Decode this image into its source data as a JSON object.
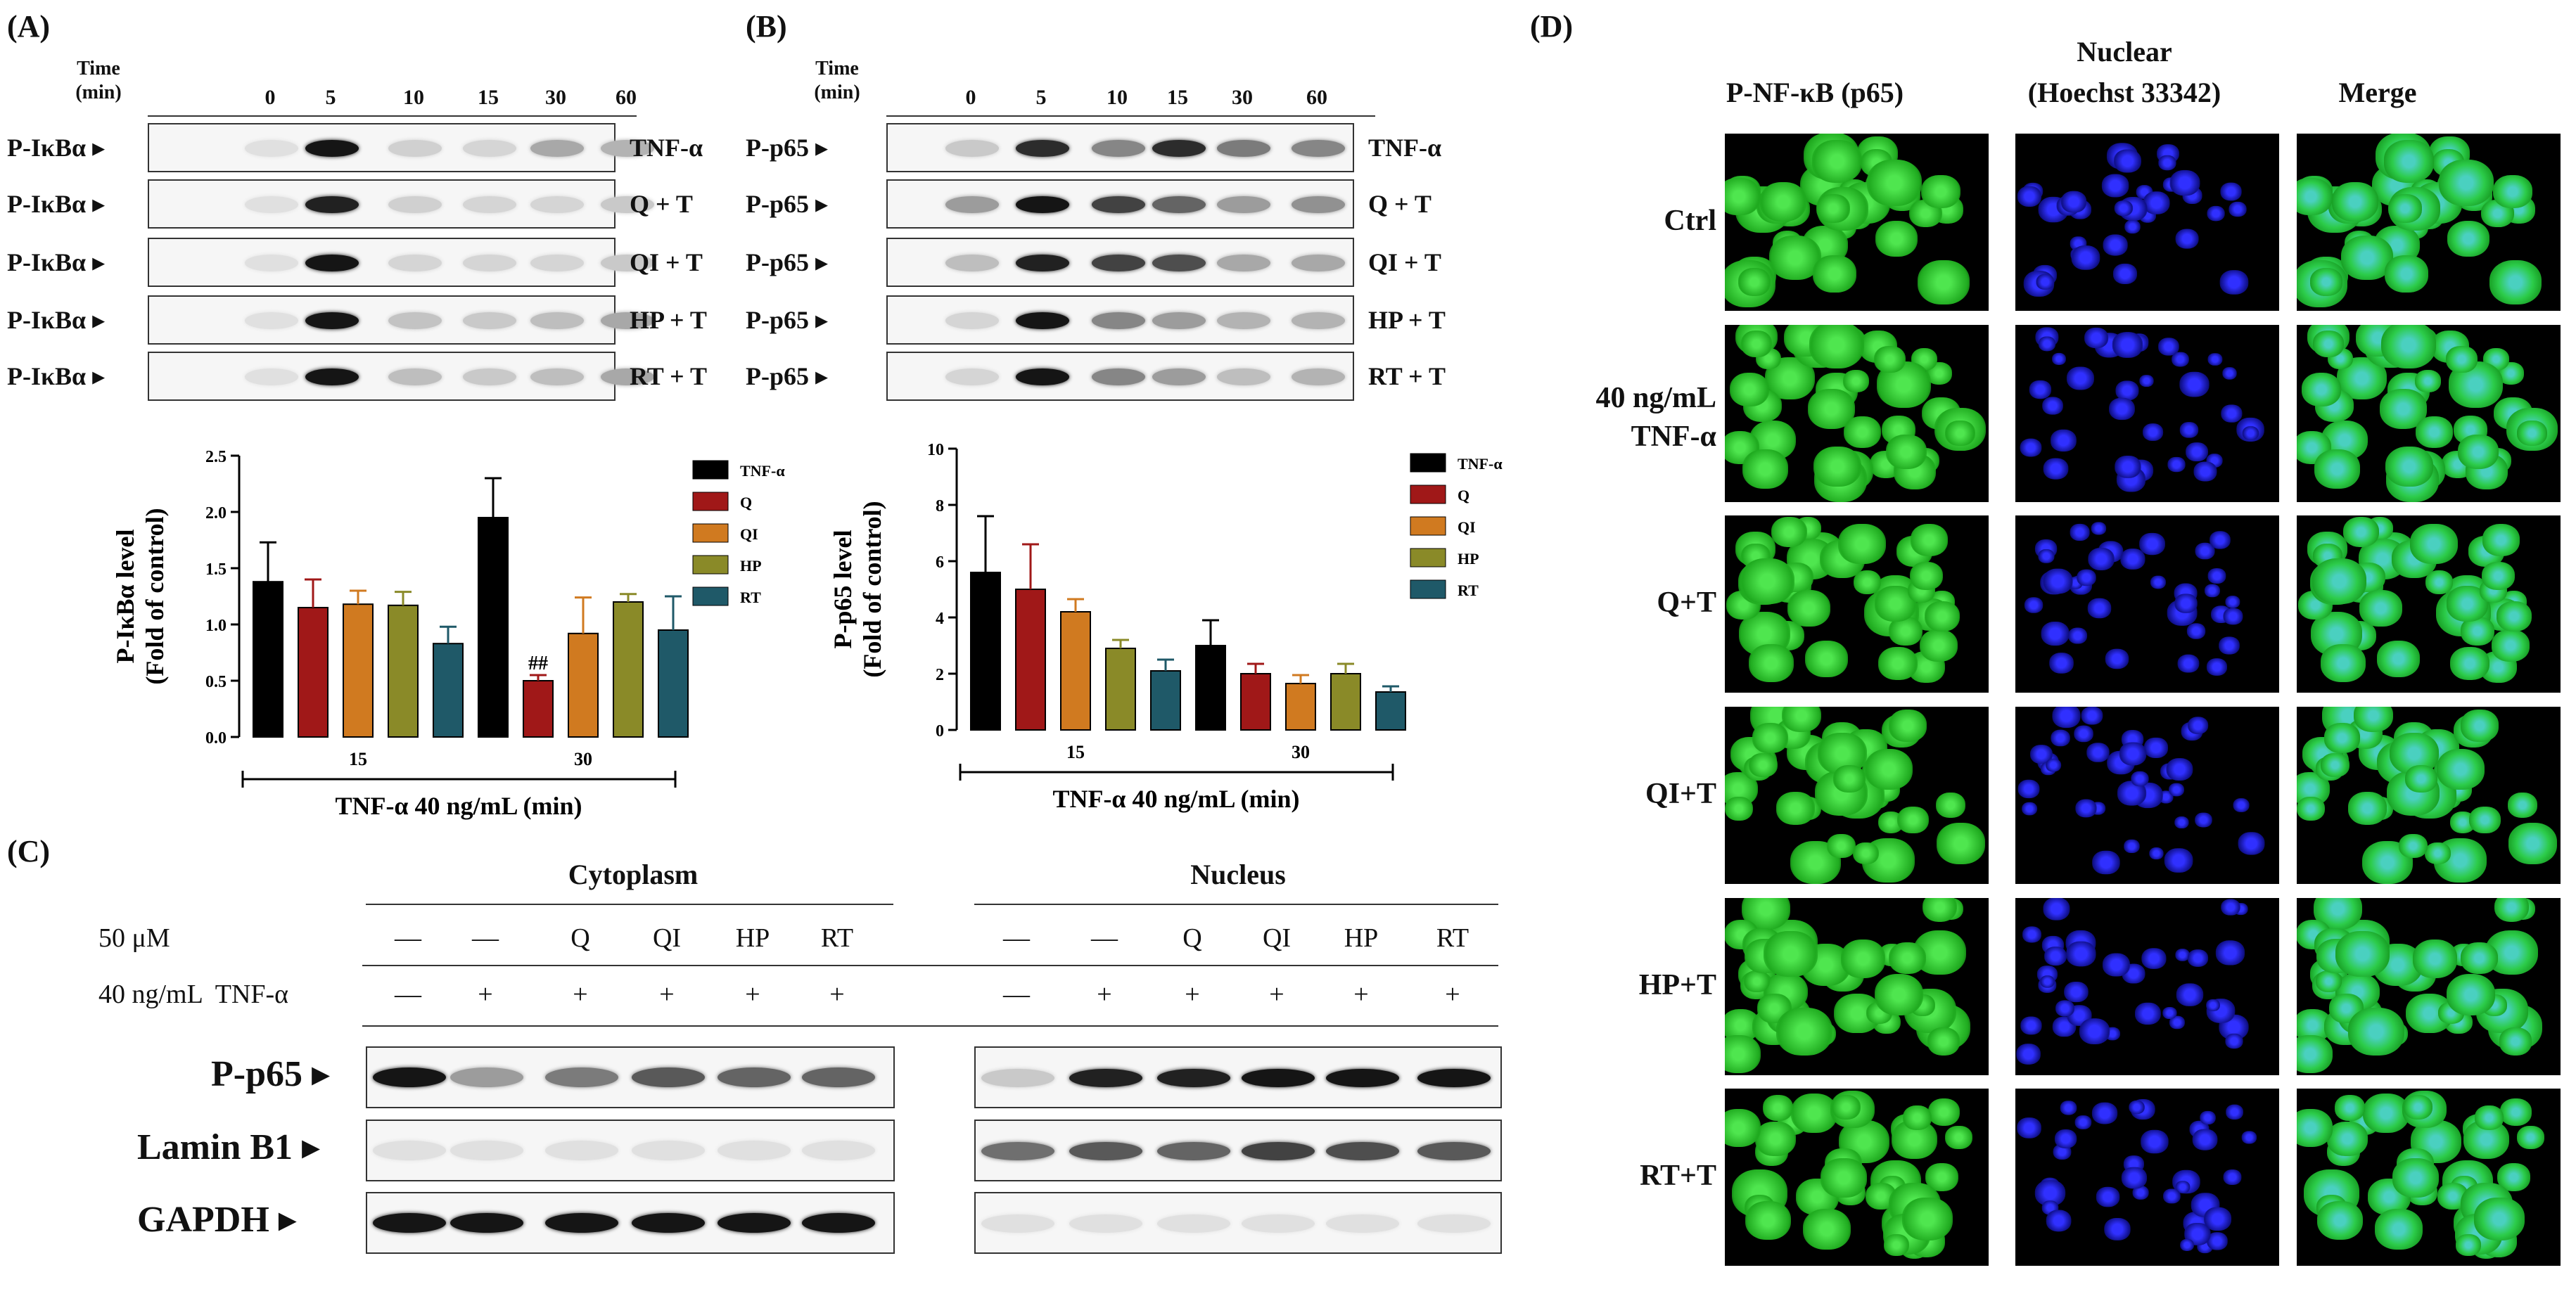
{
  "panels": {
    "A": "(A)",
    "B": "(B)",
    "C": "(C)",
    "D": "(D)"
  },
  "blots_ab": {
    "time_header_line1": "Time",
    "time_header_line2": "(min)",
    "times": [
      "0",
      "5",
      "10",
      "15",
      "30",
      "60"
    ],
    "A_protein": "P-IκBα",
    "B_protein": "P-p65",
    "treatments": [
      "TNF-α",
      "Q + T",
      "QI + T",
      "HP + T",
      "RT + T"
    ],
    "A_intensity": [
      [
        0.05,
        0.95,
        0.12,
        0.1,
        0.3,
        0.25
      ],
      [
        0.05,
        0.9,
        0.12,
        0.1,
        0.1,
        0.15
      ],
      [
        0.05,
        0.95,
        0.1,
        0.1,
        0.1,
        0.15
      ],
      [
        0.05,
        0.95,
        0.18,
        0.15,
        0.2,
        0.3
      ],
      [
        0.05,
        0.95,
        0.2,
        0.15,
        0.2,
        0.3
      ]
    ],
    "B_intensity": [
      [
        0.15,
        0.85,
        0.45,
        0.85,
        0.5,
        0.45
      ],
      [
        0.35,
        0.95,
        0.75,
        0.6,
        0.35,
        0.4
      ],
      [
        0.2,
        0.9,
        0.75,
        0.7,
        0.3,
        0.3
      ],
      [
        0.1,
        0.95,
        0.45,
        0.35,
        0.25,
        0.25
      ],
      [
        0.1,
        0.95,
        0.45,
        0.35,
        0.2,
        0.25
      ]
    ]
  },
  "chart_data": [
    {
      "type": "bar",
      "categories": [
        "15",
        "30"
      ],
      "series": [
        {
          "name": "TNF-α",
          "values": [
            1.38,
            1.95
          ],
          "errors": [
            0.35,
            0.35
          ],
          "color": "#000000"
        },
        {
          "name": "Q",
          "values": [
            1.15,
            0.5
          ],
          "errors": [
            0.25,
            0.05
          ],
          "color": "#a01818"
        },
        {
          "name": "QI",
          "values": [
            1.18,
            0.92
          ],
          "errors": [
            0.12,
            0.32
          ],
          "color": "#d07a20"
        },
        {
          "name": "HP",
          "values": [
            1.17,
            1.2
          ],
          "errors": [
            0.12,
            0.07
          ],
          "color": "#8a8a28"
        },
        {
          "name": "RT",
          "values": [
            0.83,
            0.95
          ],
          "errors": [
            0.15,
            0.3
          ],
          "color": "#1f5968"
        }
      ],
      "ylim": [
        0,
        2.5
      ],
      "yticks": [
        "0.0",
        "0.5",
        "1.0",
        "1.5",
        "2.0",
        "2.5"
      ],
      "ylabel_line1": "P-IκBα level",
      "ylabel_line2": "(Fold of control)",
      "xlabel": "TNF-α 40 ng/mL (min)",
      "annotation": "##",
      "legend": "right"
    },
    {
      "type": "bar",
      "categories": [
        "15",
        "30"
      ],
      "series": [
        {
          "name": "TNF-α",
          "values": [
            5.6,
            3.0
          ],
          "errors": [
            2.0,
            0.9
          ],
          "color": "#000000"
        },
        {
          "name": "Q",
          "values": [
            5.0,
            2.0
          ],
          "errors": [
            1.6,
            0.35
          ],
          "color": "#a01818"
        },
        {
          "name": "QI",
          "values": [
            4.2,
            1.65
          ],
          "errors": [
            0.45,
            0.3
          ],
          "color": "#d07a20"
        },
        {
          "name": "HP",
          "values": [
            2.9,
            2.0
          ],
          "errors": [
            0.3,
            0.35
          ],
          "color": "#8a8a28"
        },
        {
          "name": "RT",
          "values": [
            2.1,
            1.35
          ],
          "errors": [
            0.4,
            0.2
          ],
          "color": "#1f5968"
        }
      ],
      "ylim": [
        0,
        10
      ],
      "yticks": [
        "0",
        "2",
        "4",
        "6",
        "8",
        "10"
      ],
      "ylabel_line1": "P-p65 level",
      "ylabel_line2": "(Fold of control)",
      "xlabel": "TNF-α 40 ng/mL (min)",
      "legend": "right"
    }
  ],
  "panel_c": {
    "cytoplasm": "Cytoplasm",
    "nucleus": "Nucleus",
    "row1_label": "50 μM",
    "row2_label": "40 ng/mL  TNF-α",
    "row1_values": [
      "—",
      "—",
      "Q",
      "QI",
      "HP",
      "RT"
    ],
    "row2_values": [
      "—",
      "+",
      "+",
      "+",
      "+",
      "+"
    ],
    "proteins": [
      "P-p65",
      "Lamin B1",
      "GAPDH"
    ],
    "cyto_intensity": [
      [
        0.95,
        0.35,
        0.5,
        0.65,
        0.6,
        0.6
      ],
      [
        0.05,
        0.05,
        0.05,
        0.05,
        0.05,
        0.05
      ],
      [
        0.95,
        0.95,
        0.95,
        0.95,
        0.95,
        0.95
      ]
    ],
    "nuc_intensity": [
      [
        0.15,
        0.9,
        0.9,
        0.95,
        0.95,
        0.95
      ],
      [
        0.55,
        0.65,
        0.6,
        0.75,
        0.7,
        0.65
      ],
      [
        0.05,
        0.05,
        0.05,
        0.05,
        0.05,
        0.05
      ]
    ]
  },
  "panel_d": {
    "col_headers": [
      "P-NF-κB (p65)",
      "Nuclear",
      "(Hoechst 33342)",
      "Merge"
    ],
    "rows": [
      "Ctrl",
      "40 ng/mL",
      "TNF-α",
      "Q+T",
      "QI+T",
      "HP+T",
      "RT+T"
    ]
  }
}
